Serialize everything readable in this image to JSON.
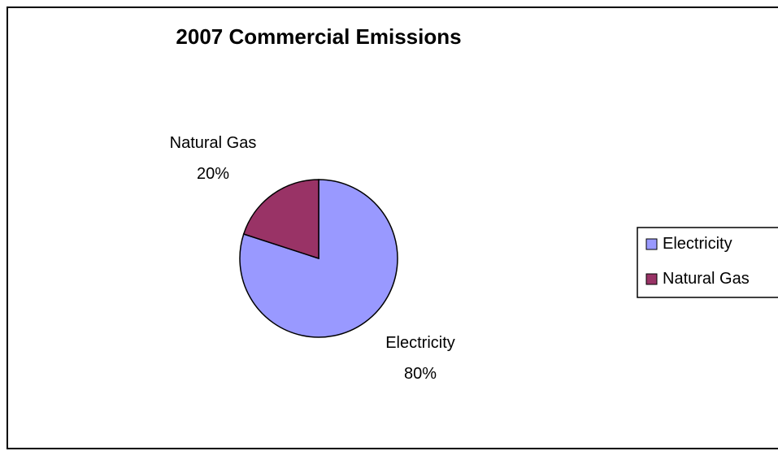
{
  "chart_data": {
    "type": "pie",
    "title": "2007 Commercial Emissions",
    "categories": [
      "Electricity",
      "Natural Gas"
    ],
    "values": [
      80,
      20
    ],
    "data_labels": [
      {
        "category": "Electricity",
        "percent": "80%"
      },
      {
        "category": "Natural Gas",
        "percent": "20%"
      }
    ],
    "colors": [
      "#9999FF",
      "#993366"
    ],
    "legend": {
      "position": "right",
      "entries": [
        "Electricity",
        "Natural Gas"
      ]
    }
  }
}
